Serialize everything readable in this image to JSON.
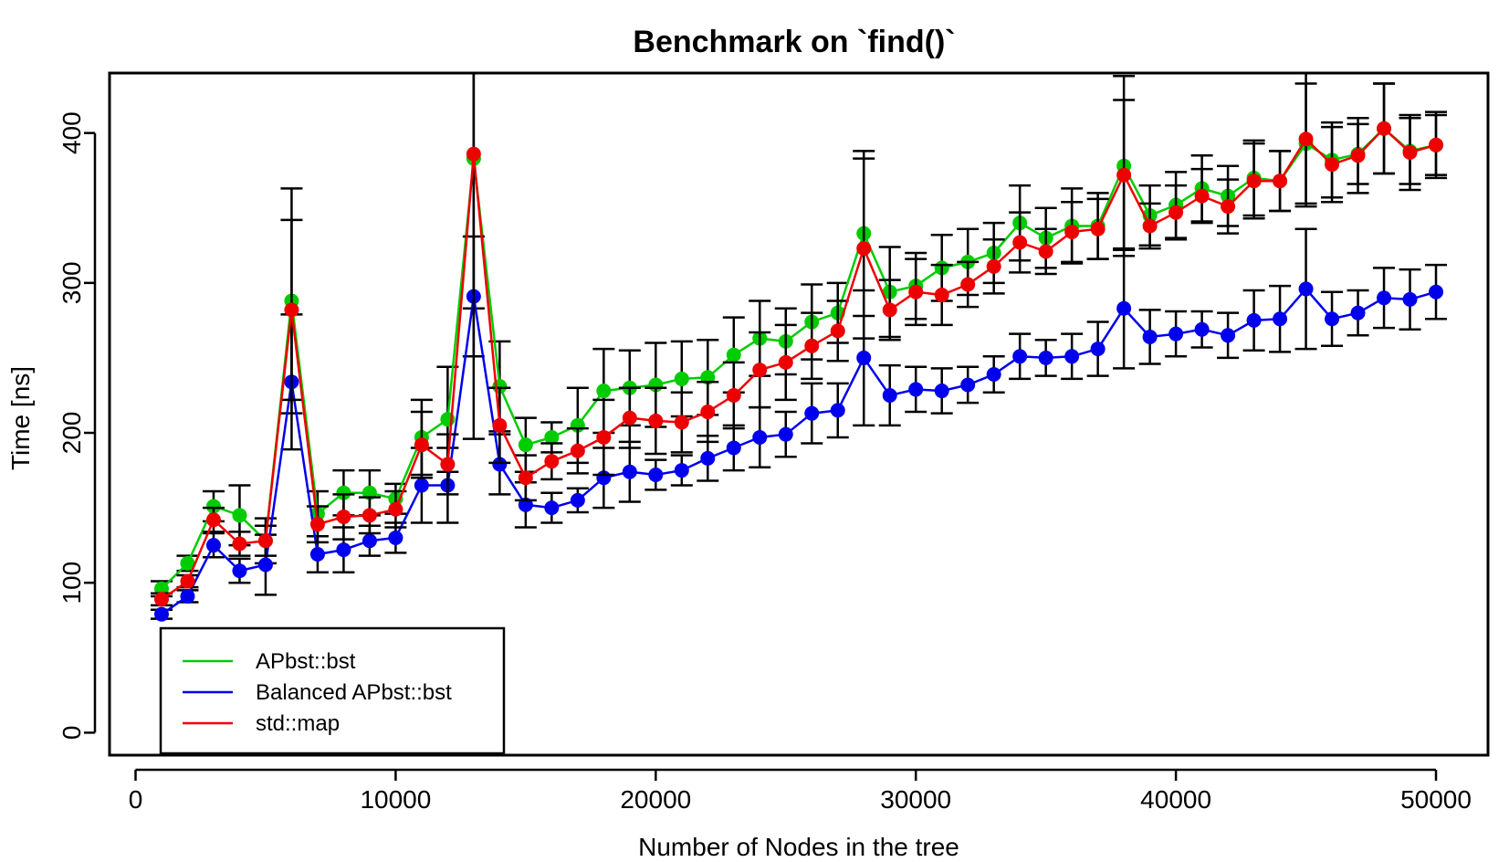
{
  "chart_data": {
    "type": "line",
    "title": "Benchmark on `find()`",
    "xlabel": "Number of Nodes in the tree",
    "ylabel": "Time [ns]",
    "xlim": [
      -1000,
      52000
    ],
    "ylim": [
      -15,
      440
    ],
    "xticks": [
      0,
      10000,
      20000,
      30000,
      40000,
      50000
    ],
    "xtick_labels": [
      "0",
      "10000",
      "20000",
      "30000",
      "40000",
      "50000"
    ],
    "yticks": [
      0,
      100,
      200,
      300,
      400
    ],
    "ytick_labels": [
      "0",
      "100",
      "200",
      "300",
      "400"
    ],
    "legend_position": "bottom-left",
    "x": [
      1000,
      2000,
      3000,
      4000,
      5000,
      6000,
      7000,
      8000,
      9000,
      10000,
      11000,
      12000,
      13000,
      14000,
      15000,
      16000,
      17000,
      18000,
      19000,
      20000,
      21000,
      22000,
      23000,
      24000,
      25000,
      26000,
      27000,
      28000,
      29000,
      30000,
      31000,
      32000,
      33000,
      34000,
      35000,
      36000,
      37000,
      38000,
      39000,
      40000,
      41000,
      42000,
      43000,
      44000,
      45000,
      46000,
      47000,
      48000,
      49000,
      50000
    ],
    "series": [
      {
        "name": "APbst::bst",
        "color": "#00cc00",
        "values": [
          96,
          113,
          151,
          145,
          128,
          288,
          146,
          160,
          160,
          156,
          197,
          209,
          383,
          231,
          192,
          197,
          205,
          228,
          230,
          232,
          236,
          237,
          252,
          263,
          261,
          274,
          280,
          333,
          294,
          298,
          310,
          314,
          320,
          340,
          330,
          338,
          338,
          378,
          345,
          352,
          363,
          358,
          370,
          368,
          393,
          382,
          386,
          403,
          388,
          392
        ],
        "errors": [
          5,
          5,
          10,
          20,
          15,
          75,
          15,
          15,
          15,
          10,
          25,
          35,
          100,
          30,
          18,
          10,
          25,
          28,
          25,
          28,
          25,
          25,
          25,
          25,
          22,
          25,
          20,
          55,
          30,
          22,
          22,
          22,
          20,
          25,
          20,
          25,
          22,
          60,
          20,
          22,
          22,
          20,
          25,
          20,
          40,
          25,
          20,
          30,
          22,
          20
        ]
      },
      {
        "name": "Balanced APbst::bst",
        "color": "#0000ee",
        "values": [
          79,
          91,
          125,
          108,
          112,
          234,
          119,
          122,
          128,
          130,
          165,
          165,
          291,
          179,
          152,
          150,
          155,
          170,
          174,
          172,
          175,
          183,
          190,
          197,
          199,
          213,
          215,
          250,
          225,
          229,
          228,
          232,
          239,
          251,
          250,
          251,
          256,
          283,
          264,
          266,
          269,
          265,
          275,
          276,
          296,
          276,
          280,
          290,
          289,
          294
        ],
        "errors": [
          3,
          4,
          8,
          8,
          20,
          45,
          12,
          15,
          10,
          10,
          25,
          25,
          40,
          20,
          15,
          10,
          8,
          20,
          20,
          10,
          10,
          15,
          15,
          20,
          15,
          20,
          18,
          45,
          20,
          15,
          15,
          12,
          12,
          15,
          12,
          15,
          18,
          40,
          18,
          15,
          12,
          15,
          20,
          22,
          40,
          18,
          15,
          20,
          20,
          18
        ]
      },
      {
        "name": "std::map",
        "color": "#ee0000",
        "values": [
          89,
          101,
          142,
          126,
          128,
          282,
          139,
          144,
          145,
          149,
          192,
          179,
          386,
          205,
          170,
          181,
          188,
          197,
          210,
          208,
          207,
          214,
          225,
          242,
          247,
          258,
          268,
          323,
          282,
          294,
          292,
          299,
          311,
          327,
          321,
          334,
          336,
          372,
          338,
          347,
          358,
          351,
          368,
          368,
          396,
          379,
          385,
          403,
          387,
          392
        ],
        "errors": [
          4,
          4,
          8,
          8,
          10,
          60,
          12,
          15,
          12,
          12,
          22,
          20,
          190,
          25,
          15,
          12,
          15,
          25,
          20,
          22,
          20,
          20,
          22,
          25,
          25,
          22,
          20,
          60,
          20,
          22,
          20,
          15,
          18,
          20,
          15,
          20,
          20,
          50,
          15,
          18,
          18,
          18,
          25,
          20,
          45,
          25,
          25,
          30,
          25,
          22
        ]
      }
    ]
  }
}
